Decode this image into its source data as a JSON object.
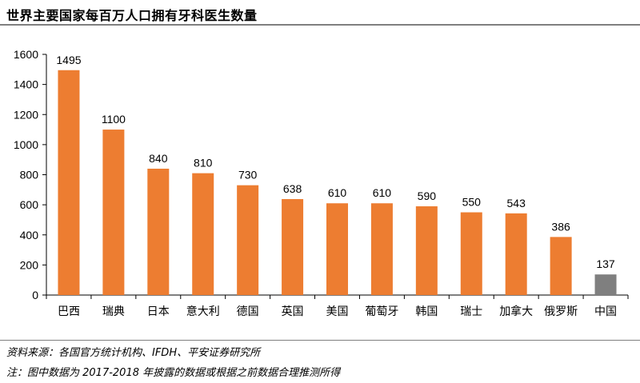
{
  "title": "世界主要国家每百万人口拥有牙科医生数量",
  "source": "资料来源：各国官方统计机构、IFDH、平安证券研究所",
  "note": "注：图中数据为 2017-2018 年披露的数据或根据之前数据合理推测所得",
  "colors": {
    "bar": "#ED7D31",
    "highlight": "#7F7F7F",
    "axis": "#000000"
  },
  "chart_data": {
    "type": "bar",
    "title": "世界主要国家每百万人口拥有牙科医生数量",
    "xlabel": "",
    "ylabel": "",
    "categories": [
      "巴西",
      "瑞典",
      "日本",
      "意大利",
      "德国",
      "英国",
      "美国",
      "葡萄牙",
      "韩国",
      "瑞士",
      "加拿大",
      "俄罗斯",
      "中国"
    ],
    "values": [
      1495,
      1100,
      840,
      810,
      730,
      638,
      610,
      610,
      590,
      550,
      543,
      386,
      137
    ],
    "ylim": [
      0,
      1600
    ],
    "yticks": [
      0,
      200,
      400,
      600,
      800,
      1000,
      1200,
      1400,
      1600
    ],
    "highlight_category": "中国",
    "grid": false,
    "legend": "none"
  }
}
